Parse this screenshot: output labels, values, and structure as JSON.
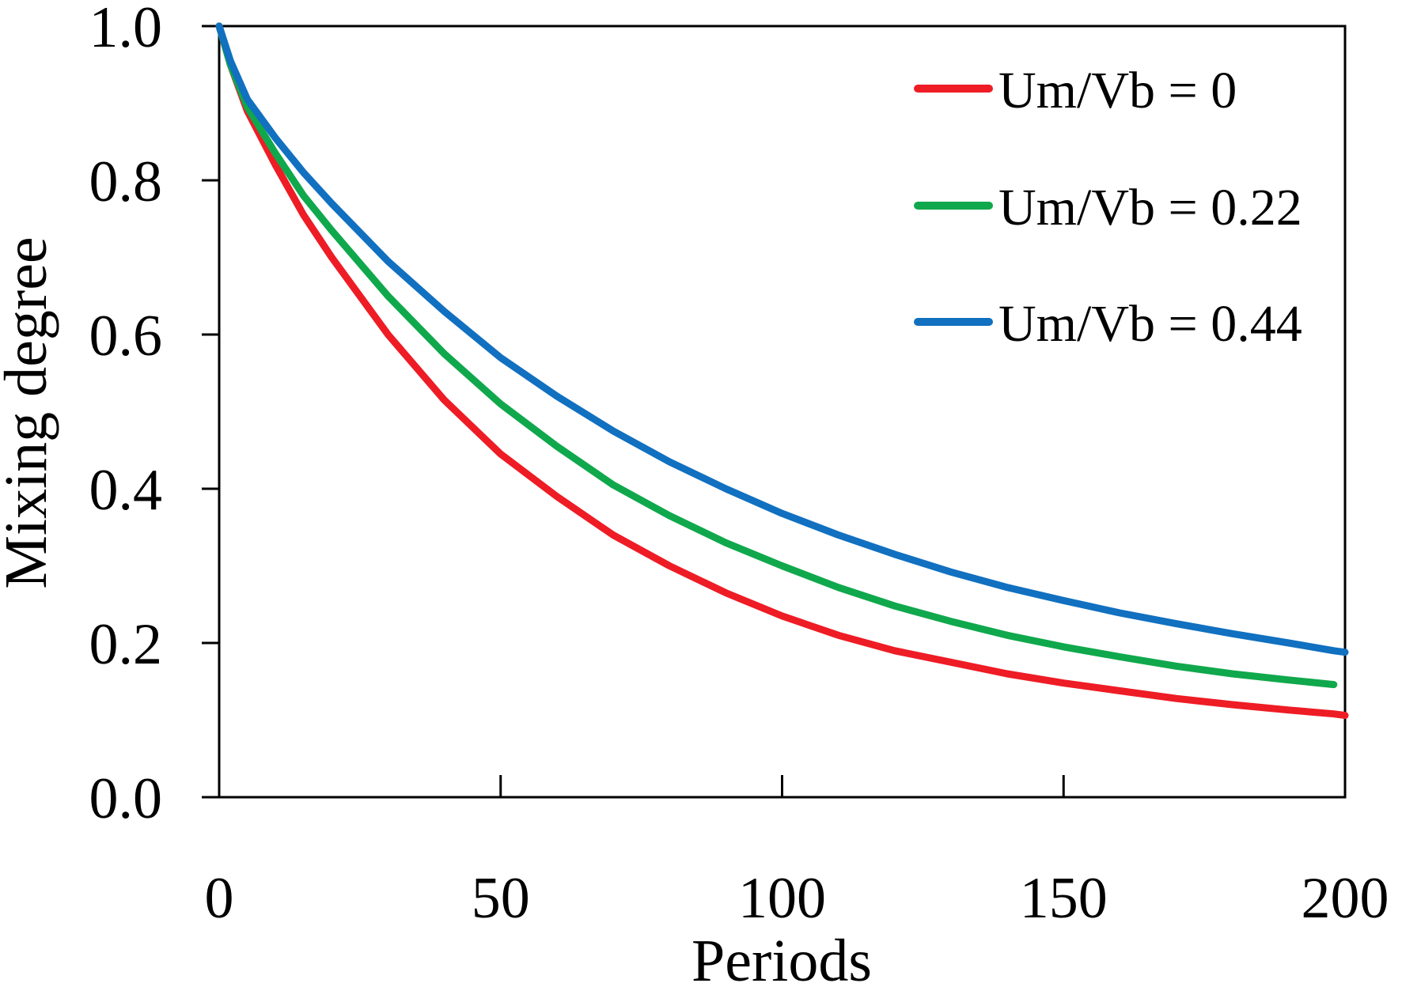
{
  "chart_data": {
    "type": "line",
    "title": "",
    "xlabel": "Periods",
    "ylabel": "Mixing degree",
    "xlim": [
      0,
      200
    ],
    "ylim": [
      0.0,
      1.0
    ],
    "x_ticks": [
      0,
      50,
      100,
      150,
      200
    ],
    "x_tick_labels": [
      "0",
      "50",
      "100",
      "150",
      "200"
    ],
    "y_ticks": [
      0.0,
      0.2,
      0.4,
      0.6,
      0.8,
      1.0
    ],
    "y_tick_labels": [
      "0.0",
      "0.2",
      "0.4",
      "0.6",
      "0.8",
      "1.0"
    ],
    "grid": false,
    "legend_position": "top-right",
    "x": [
      0,
      2,
      5,
      10,
      15,
      20,
      30,
      40,
      50,
      60,
      70,
      80,
      90,
      100,
      110,
      120,
      130,
      140,
      150,
      160,
      170,
      180,
      190,
      198,
      200
    ],
    "series": [
      {
        "name": "Um/Vb = 0",
        "color": "#ee1c25",
        "values": [
          1.0,
          0.95,
          0.89,
          0.82,
          0.755,
          0.7,
          0.6,
          0.515,
          0.445,
          0.39,
          0.34,
          0.3,
          0.265,
          0.235,
          0.21,
          0.19,
          0.175,
          0.16,
          0.148,
          0.138,
          0.128,
          0.12,
          0.113,
          0.108,
          0.106
        ]
      },
      {
        "name": "Um/Vb = 0.22",
        "color": "#10a84c",
        "values": [
          1.0,
          0.95,
          0.895,
          0.835,
          0.78,
          0.735,
          0.65,
          0.575,
          0.51,
          0.455,
          0.405,
          0.365,
          0.33,
          0.3,
          0.272,
          0.248,
          0.228,
          0.21,
          0.195,
          0.182,
          0.17,
          0.16,
          0.152,
          0.146,
          null
        ]
      },
      {
        "name": "Um/Vb = 0.44",
        "color": "#1170c0",
        "values": [
          1.0,
          0.955,
          0.905,
          0.855,
          0.81,
          0.77,
          0.695,
          0.63,
          0.57,
          0.52,
          0.475,
          0.435,
          0.4,
          0.368,
          0.34,
          0.315,
          0.292,
          0.272,
          0.255,
          0.239,
          0.225,
          0.212,
          0.2,
          0.19,
          0.188
        ]
      }
    ]
  }
}
